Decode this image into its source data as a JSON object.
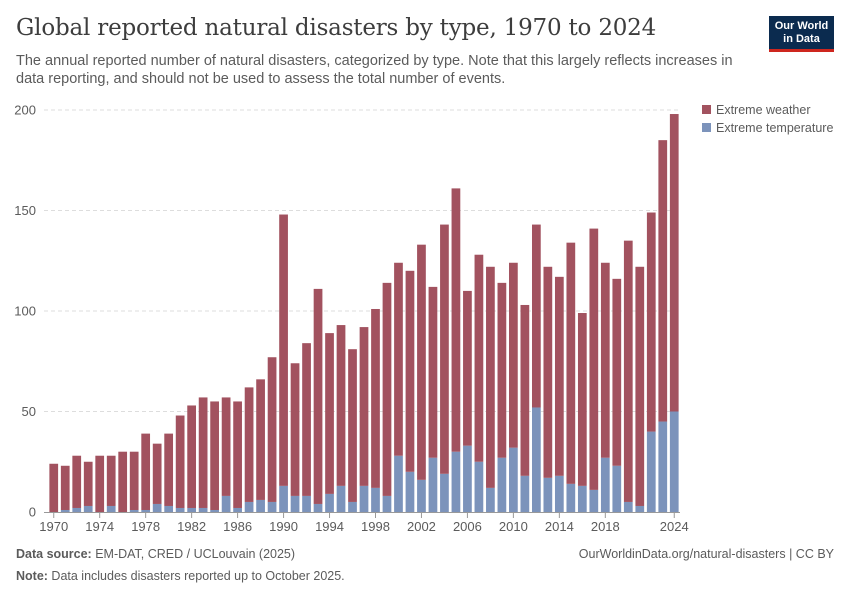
{
  "header": {
    "title": "Global reported natural disasters by type, 1970 to 2024",
    "subtitle": "The annual reported number of natural disasters, categorized by type. Note that this largely reflects increases in data reporting, and should not be used to assess the total number of events."
  },
  "logo": {
    "line1": "Our World",
    "line2": "in Data"
  },
  "footer": {
    "source_label": "Data source:",
    "source_text": " EM-DAT, CRED / UCLouvain (2025)",
    "url": "OurWorldinData.org/natural-disasters | CC BY",
    "note_label": "Note:",
    "note_text": " Data includes disasters reported up to October 2025."
  },
  "colors": {
    "extreme_weather": "#a2525f",
    "extreme_temperature": "#7c93bb",
    "grid": "#dddddd",
    "axis": "#999999"
  },
  "chart_data": {
    "type": "bar",
    "stacked": true,
    "x": [
      1970,
      1971,
      1972,
      1973,
      1974,
      1975,
      1976,
      1977,
      1978,
      1979,
      1980,
      1981,
      1982,
      1983,
      1984,
      1985,
      1986,
      1987,
      1988,
      1989,
      1990,
      1991,
      1992,
      1993,
      1994,
      1995,
      1996,
      1997,
      1998,
      1999,
      2000,
      2001,
      2002,
      2003,
      2004,
      2005,
      2006,
      2007,
      2008,
      2009,
      2010,
      2011,
      2012,
      2013,
      2014,
      2015,
      2016,
      2017,
      2018,
      2019,
      2020,
      2021,
      2022,
      2023,
      2024
    ],
    "series": [
      {
        "name": "Extreme temperature",
        "color": "#7c93bb",
        "values": [
          0,
          1,
          2,
          3,
          0,
          3,
          0,
          1,
          1,
          4,
          3,
          2,
          2,
          2,
          1,
          8,
          2,
          5,
          6,
          5,
          13,
          8,
          8,
          4,
          9,
          13,
          5,
          13,
          12,
          8,
          28,
          20,
          16,
          27,
          19,
          30,
          33,
          25,
          12,
          27,
          32,
          18,
          52,
          17,
          18,
          14,
          13,
          11,
          27,
          23,
          5,
          3,
          40,
          45,
          50
        ]
      },
      {
        "name": "Extreme weather",
        "color": "#a2525f",
        "values": [
          24,
          22,
          26,
          22,
          28,
          25,
          30,
          29,
          38,
          30,
          36,
          46,
          51,
          55,
          54,
          49,
          53,
          57,
          60,
          72,
          135,
          66,
          76,
          107,
          80,
          80,
          76,
          79,
          89,
          106,
          96,
          100,
          117,
          85,
          124,
          131,
          77,
          103,
          110,
          87,
          92,
          85,
          91,
          105,
          99,
          120,
          86,
          130,
          97,
          93,
          130,
          119,
          109,
          140,
          148
        ]
      }
    ],
    "ylim": [
      0,
      200
    ],
    "yticks": [
      0,
      50,
      100,
      150,
      200
    ],
    "xticks": [
      1970,
      1974,
      1978,
      1982,
      1986,
      1990,
      1994,
      1998,
      2002,
      2006,
      2010,
      2014,
      2018,
      2024
    ],
    "legend": [
      "Extreme weather",
      "Extreme temperature"
    ],
    "legend_position": "right"
  }
}
